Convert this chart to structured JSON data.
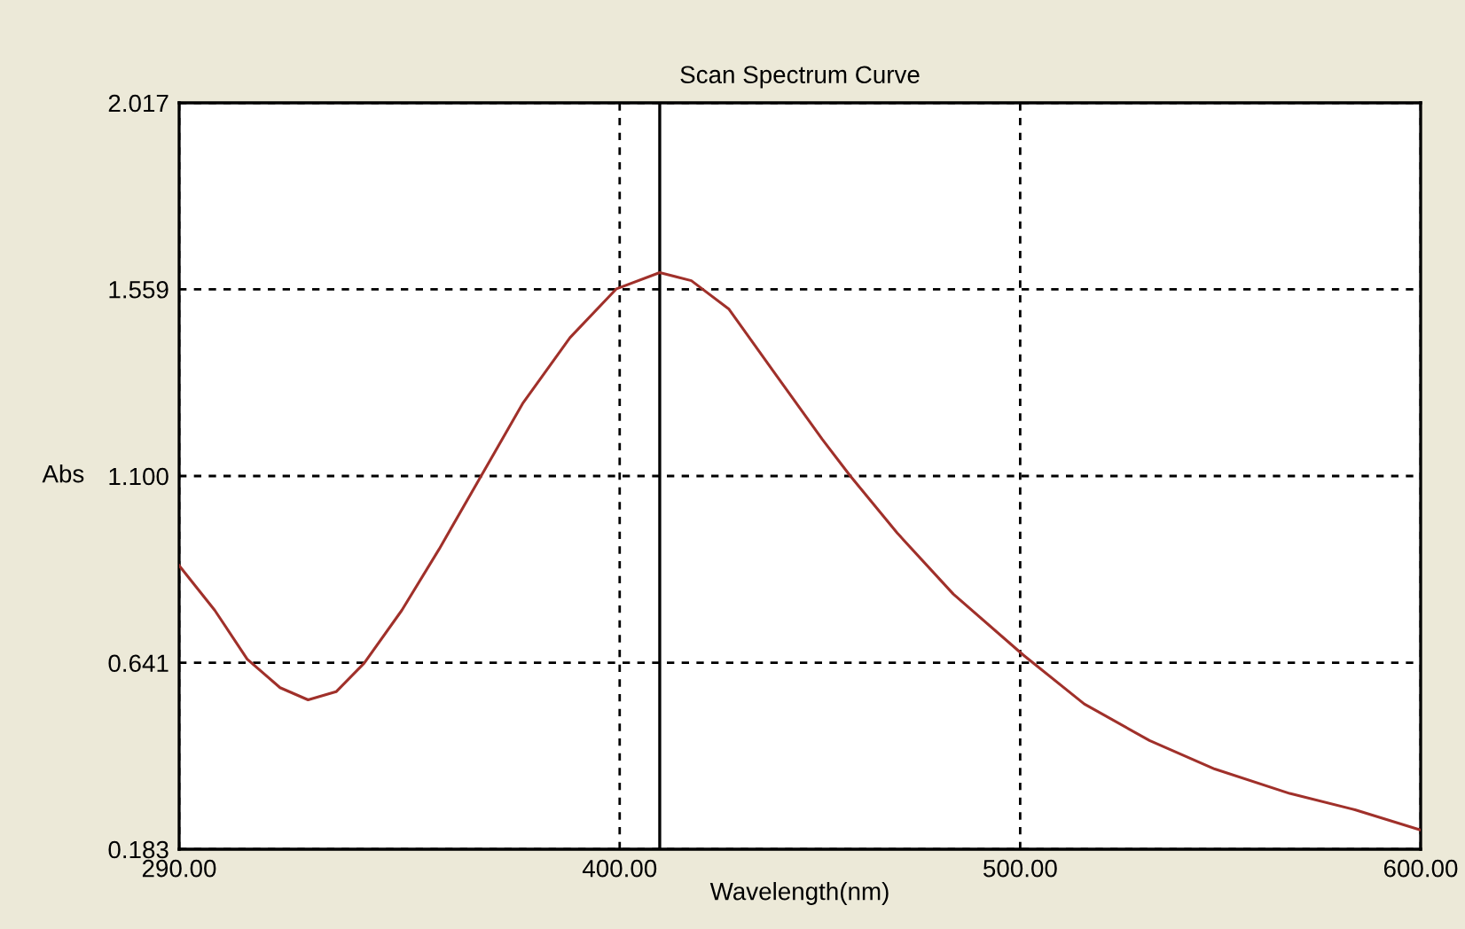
{
  "chart_data": {
    "type": "line",
    "title": "Scan Spectrum Curve",
    "xlabel": "Wavelength(nm)",
    "ylabel": "Abs",
    "x": [
      290,
      298.9,
      307.0,
      315.2,
      322.2,
      329.2,
      336.2,
      345.6,
      354.9,
      365.4,
      375.9,
      387.6,
      399.2,
      410.0,
      417.9,
      427.3,
      438.9,
      450.6,
      457.6,
      469.3,
      483.3,
      500.8,
      516.0,
      532.3,
      548.6,
      567.3,
      583.6,
      600
    ],
    "series": [
      {
        "color": "#a0302a",
        "values": [
          0.88,
          0.77,
          0.65,
          0.58,
          0.55,
          0.57,
          0.64,
          0.77,
          0.92,
          1.1,
          1.28,
          1.44,
          1.56,
          1.6,
          1.58,
          1.51,
          1.35,
          1.19,
          1.1,
          0.96,
          0.81,
          0.66,
          0.54,
          0.45,
          0.38,
          0.32,
          0.28,
          0.23
        ]
      }
    ],
    "xlim": [
      290,
      600
    ],
    "ylim": [
      0.183,
      2.017
    ],
    "xticks": [
      {
        "value": 290,
        "label": "290.00"
      },
      {
        "value": 400,
        "label": "400.00"
      },
      {
        "value": 500,
        "label": "500.00"
      },
      {
        "value": 600,
        "label": "600.00"
      }
    ],
    "yticks": [
      0.183,
      0.641,
      {
        "value": 1.1,
        "label": "1.100"
      },
      1.559,
      2.017
    ],
    "ref_lines": [
      {
        "axis": "x",
        "value": 410,
        "color": "#000000",
        "line_style": "solid"
      }
    ],
    "grid": true,
    "line_style": "solid",
    "marker": "none",
    "legend": false
  }
}
